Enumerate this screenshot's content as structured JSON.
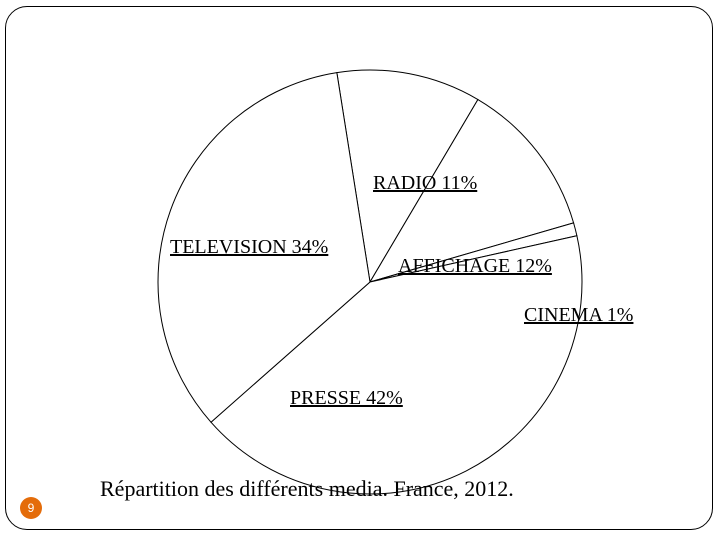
{
  "chart_data": {
    "type": "pie",
    "title": "Répartition des différents media. France, 2012.",
    "slices": [
      {
        "label": "RADIO 11%",
        "value": 11
      },
      {
        "label": "AFFICHAGE 12%",
        "value": 12
      },
      {
        "label": "CINEMA 1%",
        "value": 1
      },
      {
        "label": "PRESSE 42%",
        "value": 42
      },
      {
        "label": "TELEVISION 34%",
        "value": 34
      }
    ],
    "colors": {
      "fill": "#ffffff",
      "stroke": "#000000"
    }
  },
  "caption": "Répartition des différents media. France, 2012.",
  "page_number": "9",
  "colors": {
    "badge": "#e46c0a"
  }
}
